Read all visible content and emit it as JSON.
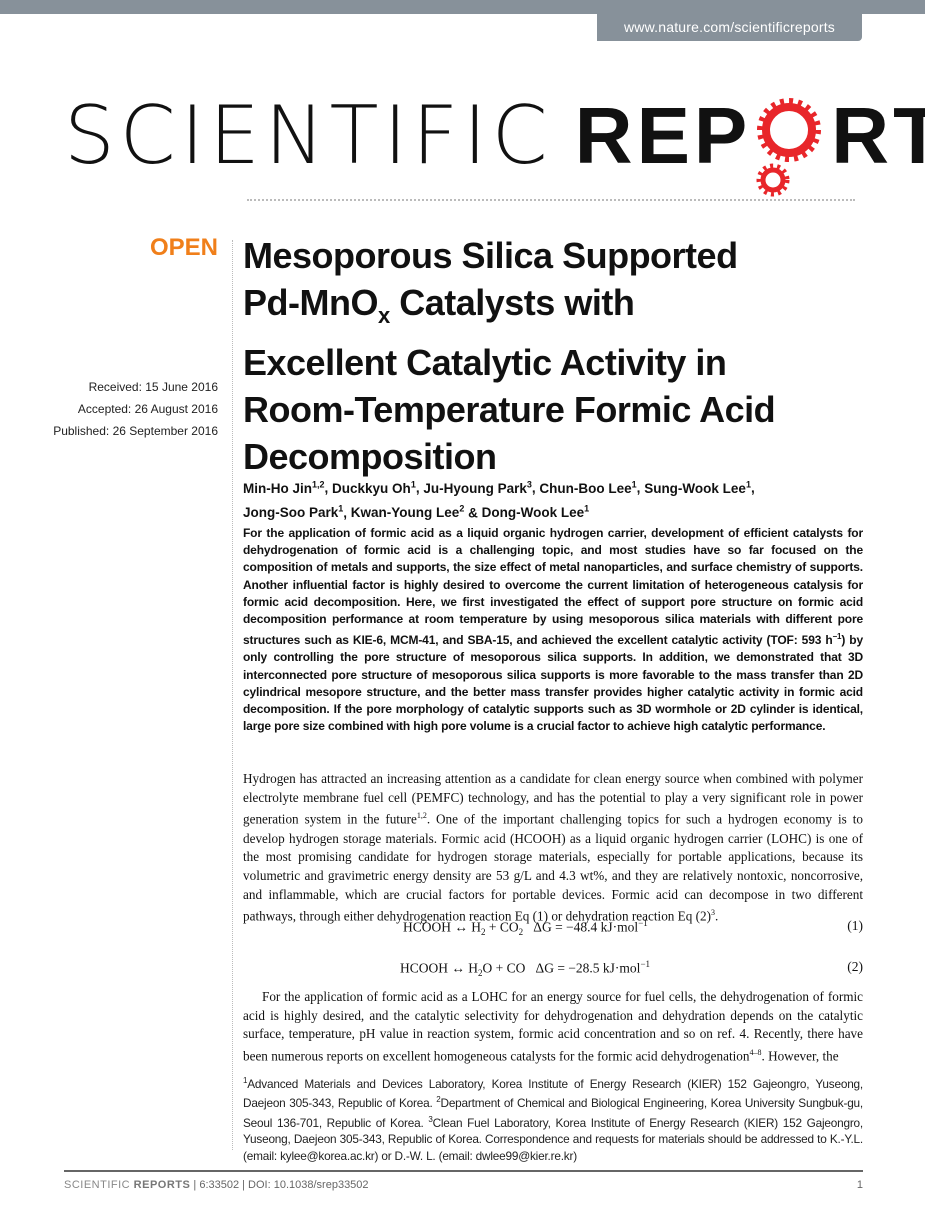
{
  "header": {
    "url": "www.nature.com/scientificreports"
  },
  "logo": {
    "word1": "SCIENTIFIC",
    "word2_prefix": "REP",
    "word2_suffix": "RTS",
    "accent": "#e8262a"
  },
  "badge": {
    "open": "OPEN",
    "color": "#f07f1a"
  },
  "dates": {
    "received": "Received: 15 June 2016",
    "accepted": "Accepted: 26 August 2016",
    "published": "Published: 26 September 2016"
  },
  "title": {
    "line1": "Mesoporous Silica Supported",
    "line2a": "Pd-MnO",
    "line2sub": "x",
    "line2b": " Catalysts with",
    "line3": "Excellent Catalytic Activity in",
    "line4": "Room-Temperature Formic Acid",
    "line5": "Decomposition"
  },
  "authors": [
    {
      "name": "Min-Ho Jin",
      "aff": "1,2",
      "sep": ", "
    },
    {
      "name": "Duckkyu Oh",
      "aff": "1",
      "sep": ", "
    },
    {
      "name": "Ju-Hyoung Park",
      "aff": "3",
      "sep": ", "
    },
    {
      "name": "Chun-Boo Lee",
      "aff": "1",
      "sep": ", "
    },
    {
      "name": "Sung-Wook Lee",
      "aff": "1",
      "sep": ","
    },
    {
      "name": "Jong-Soo Park",
      "aff": "1",
      "sep": ", "
    },
    {
      "name": "Kwan-Young Lee",
      "aff": "2",
      "sep": " & "
    },
    {
      "name": "Dong-Wook Lee",
      "aff": "1",
      "sep": ""
    }
  ],
  "abstract": {
    "part1": "For the application of formic acid as a liquid organic hydrogen carrier, development of efficient catalysts for dehydrogenation of formic acid is a challenging topic, and most studies have so far focused on the composition of metals and supports, the size effect of metal nanoparticles, and surface chemistry of supports. Another influential factor is highly desired to overcome the current limitation of heterogeneous catalysis for formic acid decomposition. Here, we first investigated the effect of support pore structure on formic acid decomposition performance at room temperature by using mesoporous silica materials with different pore structures such as KIE-6, MCM-41, and SBA-15, and achieved the excellent catalytic activity (TOF: 593 h",
    "sup": "−1",
    "part2": ") by only controlling the pore structure of mesoporous silica supports. In addition, we demonstrated that 3D interconnected pore structure of mesoporous silica supports is more favorable to the mass transfer than 2D cylindrical mesopore structure, and the better mass transfer provides higher catalytic activity in formic acid decomposition. If the pore morphology of catalytic supports such as 3D wormhole or 2D cylinder is identical, large pore size combined with high pore volume is a crucial factor to achieve high catalytic performance."
  },
  "body": {
    "p1a": "Hydrogen has attracted an increasing attention as a candidate for clean energy source when combined with polymer electrolyte membrane fuel cell (PEMFC) technology, and has the potential to play a very significant role in power generation system in the future",
    "p1sup1": "1,2",
    "p1b": ". One of the important challenging topics for such a hydrogen economy is to develop hydrogen storage materials. Formic acid (HCOOH) as a liquid organic hydrogen carrier (LOHC) is one of the most promising candidate for hydrogen storage materials, especially for portable applications, because its volumetric and gravimetric energy density are 53 g/L and 4.3 wt%, and they are relatively nontoxic, noncorrosive, and inflammable, which are crucial factors for portable devices. Formic acid can decompose in two different pathways, through either dehydrogenation reaction Eq (1) or dehydration reaction Eq (2)",
    "p1sup2": "3",
    "p1c": ".",
    "p2a": "For the application of formic acid as a LOHC for an energy source for fuel cells, the dehydrogenation of formic acid is highly desired, and the catalytic selectivity for dehydrogenation and dehydration depends on the catalytic surface, temperature, pH value in reaction system, formic acid concentration and so on ref. 4. Recently, there have been numerous reports on excellent homogeneous catalysts for the formic acid dehydrogenation",
    "p2sup": "4–8",
    "p2b": ". However, the"
  },
  "equations": [
    {
      "lhs": "HCOOH ↔ H",
      "s1": "2",
      "mid": " + CO",
      "s2": "2",
      "dg": "   ΔG = −48.4 kJ·mol",
      "exp": "−1",
      "number": "(1)"
    },
    {
      "lhs": "HCOOH ↔ H",
      "s1": "2",
      "mid": "O + CO",
      "s2": "",
      "dg": "   ΔG = −28.5 kJ·mol",
      "exp": "−1",
      "number": "(2)"
    }
  ],
  "footnote": {
    "a1": "1",
    "t1": "Advanced Materials and Devices Laboratory, Korea Institute of Energy Research (KIER) 152 Gajeongro, Yuseong, Daejeon 305-343, Republic of Korea. ",
    "a2": "2",
    "t2": "Department of Chemical and Biological Engineering, Korea University Sungbuk-gu, Seoul 136-701, Republic of Korea. ",
    "a3": "3",
    "t3": "Clean Fuel Laboratory, Korea Institute of Energy Research (KIER) 152 Gajeongro, Yuseong, Daejeon 305-343, Republic of Korea. Correspondence and requests for materials should be addressed to K.-Y.L. (email: kylee@korea.ac.kr) or D.-W. L. (email: dwlee99@kier.re.kr)"
  },
  "footer": {
    "journal1": "SCIENTIFIC ",
    "journal2": "REPORTS",
    "citation": " | 6:33502 | DOI: 10.1038/srep33502",
    "page": "1"
  }
}
